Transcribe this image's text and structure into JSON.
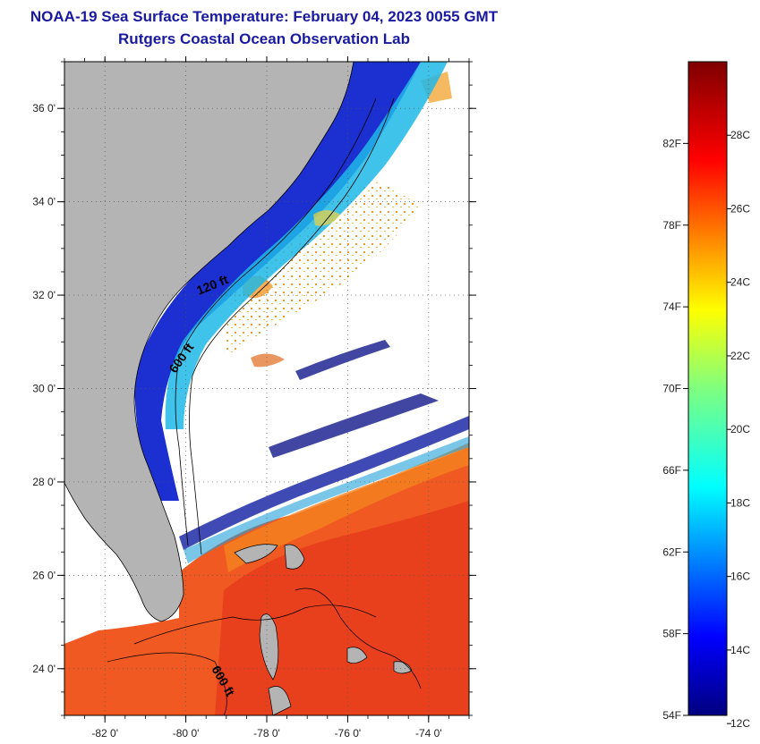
{
  "header": {
    "title": "NOAA-19 Sea Surface Temperature:  February 04, 2023 0055 GMT",
    "subtitle": "Rutgers Coastal Ocean Observation Lab"
  },
  "map": {
    "lon_range": [
      -83,
      -73
    ],
    "lat_range": [
      23,
      37
    ],
    "lon_ticks": [
      {
        "value": -82,
        "label": "-82 0'"
      },
      {
        "value": -80,
        "label": "-80 0'"
      },
      {
        "value": -78,
        "label": "-78 0'"
      },
      {
        "value": -76,
        "label": "-76 0'"
      },
      {
        "value": -74,
        "label": "-74 0'"
      }
    ],
    "lat_ticks": [
      {
        "value": 36,
        "label": "36 0'"
      },
      {
        "value": 34,
        "label": "34 0'"
      },
      {
        "value": 32,
        "label": "32 0'"
      },
      {
        "value": 30,
        "label": "30 0'"
      },
      {
        "value": 28,
        "label": "28 0'"
      },
      {
        "value": 26,
        "label": "26 0'"
      },
      {
        "value": 24,
        "label": "24 0'"
      }
    ],
    "contour_labels": {
      "shallow": "120 ft",
      "mid": "600 ft",
      "south": "600 ft"
    },
    "colors": {
      "land": "#b4b4b4",
      "cloud": "#ffffff",
      "frame": "#000000"
    }
  },
  "colorbar": {
    "range_f": [
      54,
      86
    ],
    "f_labels": [
      "82F",
      "78F",
      "74F",
      "70F",
      "66F",
      "62F",
      "58F",
      "54F"
    ],
    "f_values": [
      82,
      78,
      74,
      70,
      66,
      62,
      58,
      54
    ],
    "c_labels": [
      "28C",
      "26C",
      "24C",
      "22C",
      "20C",
      "18C",
      "16C",
      "14C",
      "12C"
    ],
    "c_values": [
      28,
      26,
      24,
      22,
      20,
      18,
      16,
      14,
      12
    ]
  }
}
